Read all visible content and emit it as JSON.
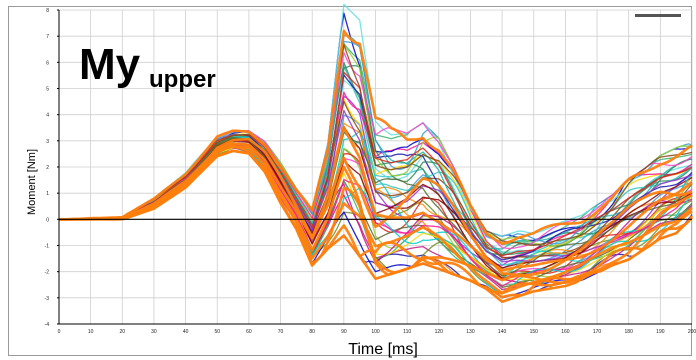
{
  "chart_data": {
    "type": "line",
    "title": "My",
    "title_subscript": "upper",
    "xlabel": "Time [ms]",
    "ylabel": "Moment [Nm]",
    "xlim": [
      0,
      200
    ],
    "ylim": [
      -4,
      8
    ],
    "x_ticks": [
      0,
      10,
      20,
      30,
      40,
      50,
      60,
      70,
      80,
      90,
      100,
      110,
      120,
      130,
      140,
      150,
      160,
      170,
      180,
      190,
      200
    ],
    "y_ticks": [
      8,
      7,
      6,
      5,
      4,
      3,
      2,
      1,
      0,
      -1,
      -2,
      -3,
      -4
    ],
    "grid": true,
    "zero_line": true,
    "series_count": 50,
    "palette": [
      "#1a1aa8",
      "#3b9ad4",
      "#2ec4c4",
      "#5ee0e0",
      "#3cb371",
      "#2e8b57",
      "#6b8e23",
      "#9acd32",
      "#ffd700",
      "#ff8c00",
      "#e2231a",
      "#c71585",
      "#ff44cc",
      "#9932cc",
      "#8b0000",
      "#556b2f",
      "#ff1493",
      "#00ced1",
      "#8b4513",
      "#0000cd",
      "#20b2aa",
      "#ff7f24"
    ],
    "highlight_color": "#ff7f0e",
    "envelope": {
      "x": [
        0,
        10,
        20,
        30,
        40,
        50,
        55,
        60,
        65,
        70,
        75,
        80,
        85,
        90,
        95,
        100,
        105,
        110,
        115,
        120,
        125,
        130,
        135,
        140,
        145,
        150,
        155,
        160,
        165,
        170,
        175,
        180,
        185,
        190,
        195,
        200
      ],
      "y_low": [
        0,
        0,
        0,
        0.4,
        1.2,
        2.4,
        2.6,
        2.5,
        1.8,
        0.6,
        -0.4,
        -1.8,
        -1.2,
        -0.8,
        -1.6,
        -2.4,
        -2.2,
        -2.0,
        -1.8,
        -2.0,
        -2.2,
        -2.4,
        -2.7,
        -3.2,
        -3.0,
        -2.8,
        -2.7,
        -2.6,
        -2.4,
        -2.1,
        -1.8,
        -1.6,
        -1.2,
        -0.8,
        -0.6,
        0
      ],
      "y_high": [
        0,
        0.1,
        0.1,
        0.8,
        1.8,
        3.2,
        3.4,
        3.4,
        3.0,
        2.2,
        1.2,
        0.4,
        3.0,
        8.4,
        7.8,
        4.2,
        3.6,
        3.4,
        3.8,
        3.2,
        2.0,
        0.6,
        -0.4,
        -0.6,
        -0.4,
        -0.4,
        -0.2,
        0.0,
        0.2,
        0.6,
        1.0,
        1.6,
        2.0,
        2.5,
        2.8,
        3.0
      ]
    }
  }
}
